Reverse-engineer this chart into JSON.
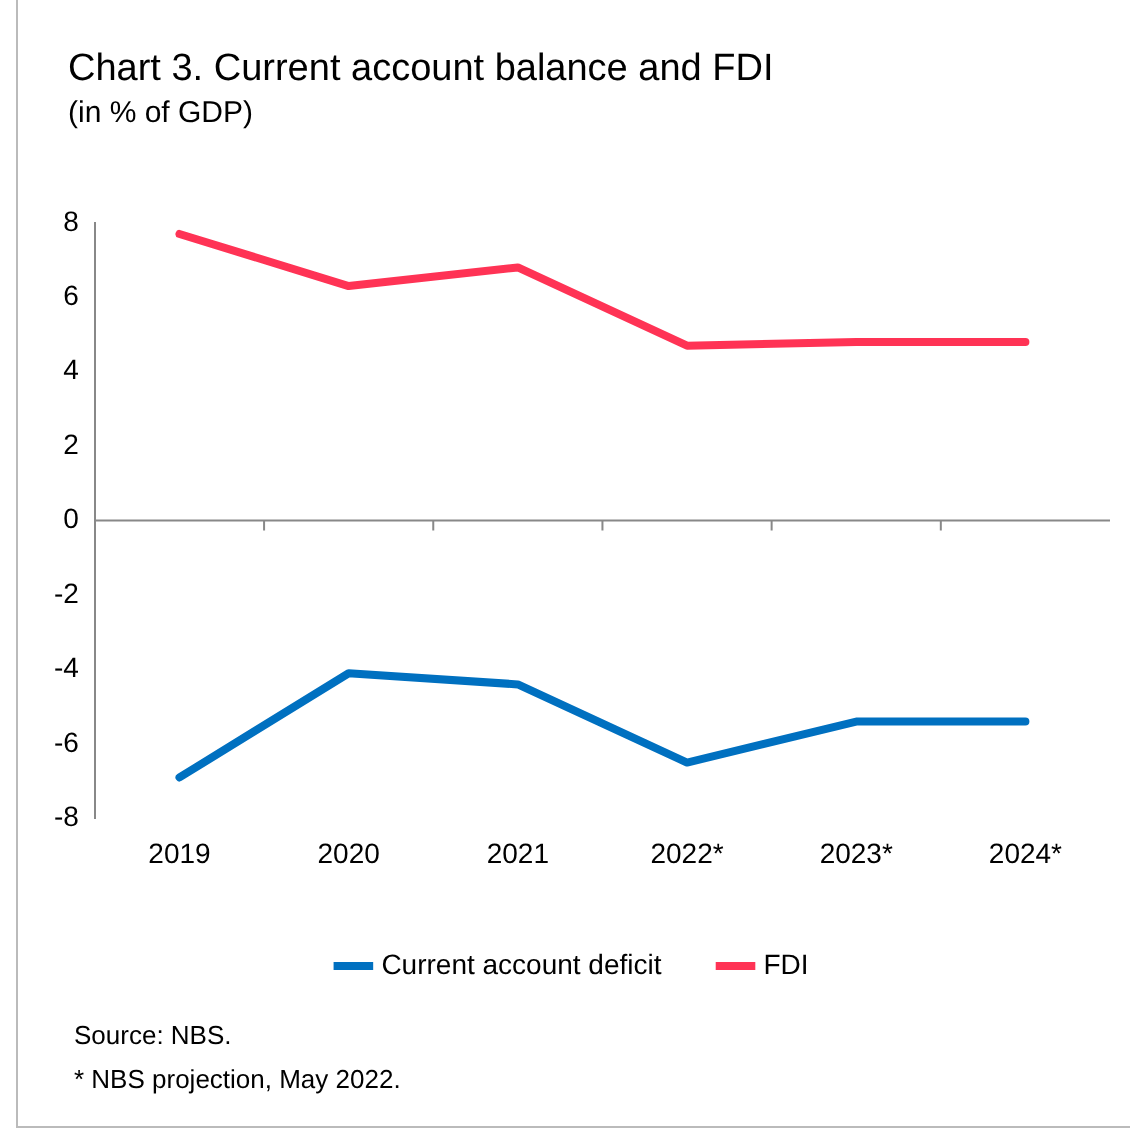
{
  "chart_data": {
    "type": "line",
    "title": "Chart 3. Current account balance and FDI",
    "subtitle": "(in % of GDP)",
    "categories": [
      "2019",
      "2020",
      "2021",
      "2022*",
      "2023*",
      "2024*"
    ],
    "series": [
      {
        "name": "Current account deficit",
        "color": "#0070c0",
        "values": [
          -6.9,
          -4.1,
          -4.4,
          -6.5,
          -5.4,
          -5.4
        ]
      },
      {
        "name": "FDI",
        "color": "#ff3355",
        "values": [
          7.7,
          6.3,
          6.8,
          4.7,
          4.8,
          4.8
        ]
      }
    ],
    "ylim": [
      -8,
      8
    ],
    "yticks": [
      -8,
      -6,
      -4,
      -2,
      0,
      2,
      4,
      6,
      8
    ],
    "grid": false,
    "ref_lines": [
      {
        "axis": "y",
        "value": 0,
        "color": "#888888"
      }
    ],
    "legend": "bottom",
    "marker": "none",
    "line_style": "solid",
    "annotations": [
      "Source: NBS.",
      "* NBS projection, May 2022."
    ]
  }
}
